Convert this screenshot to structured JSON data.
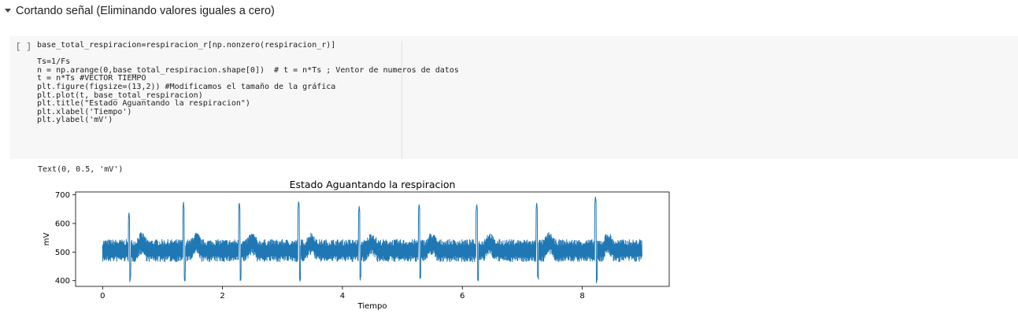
{
  "section": {
    "title": "Cortando señal (Eliminando valores iguales a cero)"
  },
  "cell": {
    "run_label": "[ ]",
    "code_lines": [
      "base_total_respiracion=respiracion_r[np.nonzero(respiracion_r)]",
      "",
      "Ts=1/Fs",
      "n = np.arange(0,base_total_respiracion.shape[0])  # t = n*Ts ; Ventor de numeros de datos",
      "t = n*Ts #VECTOR TIEMPO",
      "plt.figure(figsize=(13,2)) #Modificamos el tamaño de la gráfica",
      "plt.plot(t, base_total_respiracion)",
      "plt.title(\"Estado Aguantando la respiracion\")",
      "plt.xlabel('Tiempo')",
      "plt.ylabel('mV')"
    ]
  },
  "output": {
    "text": "Text(0, 0.5, 'mV')"
  },
  "chart_data": {
    "type": "line",
    "title": "Estado Aguantando la respiracion",
    "xlabel": "Tiempo",
    "ylabel": "mV",
    "xlim": [
      -0.45,
      9.45
    ],
    "ylim": [
      380,
      710
    ],
    "xticks": [
      0,
      2,
      4,
      6,
      8
    ],
    "yticks": [
      400,
      500,
      600,
      700
    ],
    "color": "#1f77b4",
    "baseline_mV": 505,
    "noise_amplitude_mV": 40,
    "x_range": [
      0,
      9.0
    ],
    "beats": [
      {
        "t": 0.44,
        "peak": 640,
        "trough": 398
      },
      {
        "t": 1.35,
        "peak": 675,
        "trough": 392
      },
      {
        "t": 2.28,
        "peak": 675,
        "trough": 392
      },
      {
        "t": 3.27,
        "peak": 680,
        "trough": 392
      },
      {
        "t": 4.28,
        "peak": 662,
        "trough": 400
      },
      {
        "t": 5.28,
        "peak": 670,
        "trough": 398
      },
      {
        "t": 6.24,
        "peak": 670,
        "trough": 398
      },
      {
        "t": 7.24,
        "peak": 673,
        "trough": 400
      },
      {
        "t": 8.22,
        "peak": 697,
        "trough": 390
      }
    ]
  }
}
